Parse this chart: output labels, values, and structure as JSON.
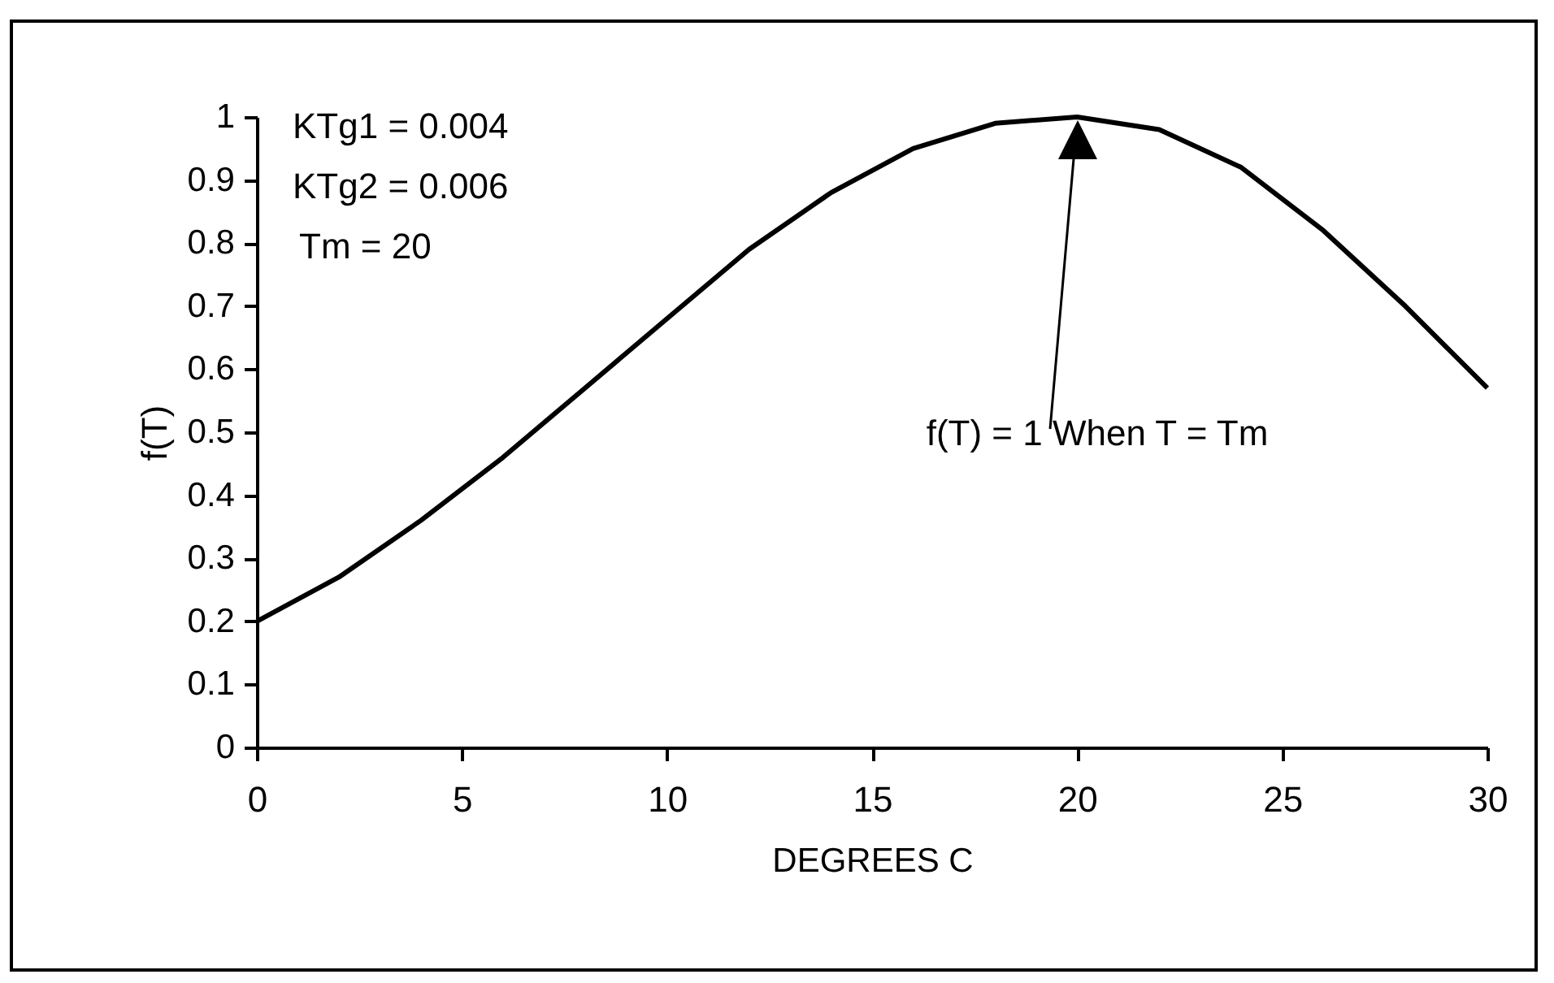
{
  "chart_data": {
    "type": "line",
    "xlabel": "DEGREES C",
    "ylabel": "f(T)",
    "x": [
      0,
      2,
      4,
      6,
      8,
      10,
      12,
      14,
      16,
      18,
      20,
      22,
      24,
      26,
      28,
      30
    ],
    "series": [
      {
        "color": "#000000",
        "values": [
          0.2,
          0.27,
          0.36,
          0.46,
          0.57,
          0.68,
          0.79,
          0.88,
          0.95,
          0.99,
          1.0,
          0.98,
          0.92,
          0.82,
          0.7,
          0.57
        ]
      }
    ],
    "xlim": [
      0,
      30
    ],
    "xticks": [
      0,
      5,
      10,
      15,
      20,
      25,
      30
    ],
    "ylim": [
      0,
      1
    ],
    "yticks": [
      0,
      {
        "value": 0.1,
        "label": "0.1"
      },
      0.2,
      0.3,
      0.4,
      0.5,
      0.6,
      0.7,
      0.8,
      0.9,
      1
    ],
    "grid": false,
    "annotations": [
      "KTg1 = 0.004",
      "KTg2 = 0.006",
      "Tm = 20",
      "f(T) = 1 When T = Tm"
    ]
  }
}
